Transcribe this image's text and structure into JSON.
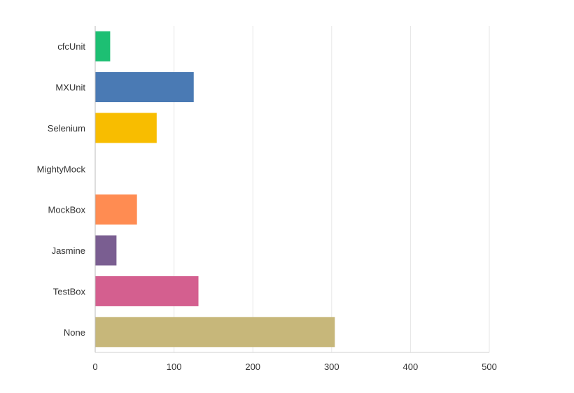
{
  "chart_data": {
    "type": "bar",
    "orientation": "horizontal",
    "categories": [
      "cfcUnit",
      "MXUnit",
      "Selenium",
      "MightyMock",
      "MockBox",
      "Jasmine",
      "TestBox",
      "None"
    ],
    "values": [
      19,
      125,
      78,
      0,
      53,
      27,
      131,
      304
    ],
    "colors": [
      "#1dbf73",
      "#4a7ab4",
      "#f8bd00",
      "#8f5fbf",
      "#ff8c52",
      "#7a5e91",
      "#d45f8f",
      "#c7b77a"
    ],
    "xlim": [
      0,
      500
    ],
    "xticks": [
      0,
      100,
      200,
      300,
      400,
      500
    ],
    "title": "",
    "xlabel": "",
    "ylabel": "",
    "grid": "vertical"
  }
}
